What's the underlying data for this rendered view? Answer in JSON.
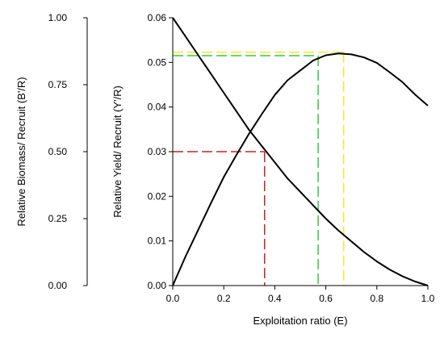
{
  "chart_data": {
    "type": "line",
    "xlabel": "Exploitation ratio (E)",
    "ylabel_left": "Relative Biomass/ Recruit (B'/R)",
    "ylabel_right": "Relative Yield/ Recruit (Y'/R)",
    "xlim": [
      0,
      1.0
    ],
    "ylim_biomass": [
      0,
      1.0
    ],
    "ylim_yield": [
      0,
      0.06
    ],
    "x_ticks": [
      "0.0",
      "0.2",
      "0.4",
      "0.6",
      "0.8",
      "1.0"
    ],
    "biomass_ticks": [
      "0.00",
      "0.25",
      "0.50",
      "0.75",
      "1.00"
    ],
    "yield_ticks": [
      "0.00",
      "0.01",
      "0.02",
      "0.03",
      "0.04",
      "0.05",
      "0.06"
    ],
    "grid": false,
    "series": [
      {
        "axis": "yield",
        "x": [
          0,
          0.05,
          0.1,
          0.15,
          0.2,
          0.25,
          0.3,
          0.35,
          0.4,
          0.45,
          0.5,
          0.55,
          0.6,
          0.65,
          0.7,
          0.75,
          0.8,
          0.85,
          0.9,
          0.95,
          1.0
        ],
        "values": [
          0,
          0.0065,
          0.0125,
          0.0185,
          0.0243,
          0.0293,
          0.0341,
          0.0385,
          0.0427,
          0.046,
          0.0482,
          0.0504,
          0.0516,
          0.052,
          0.0518,
          0.0511,
          0.0499,
          0.0478,
          0.0456,
          0.0428,
          0.0403
        ]
      },
      {
        "axis": "biomass",
        "x": [
          0,
          0.05,
          0.1,
          0.15,
          0.2,
          0.25,
          0.3,
          0.35,
          0.4,
          0.45,
          0.5,
          0.55,
          0.6,
          0.65,
          0.7,
          0.75,
          0.8,
          0.85,
          0.9,
          0.95,
          1.0
        ],
        "values": [
          1.0,
          0.93,
          0.86,
          0.79,
          0.72,
          0.65,
          0.58,
          0.52,
          0.46,
          0.4,
          0.35,
          0.3,
          0.25,
          0.205,
          0.165,
          0.125,
          0.09,
          0.06,
          0.035,
          0.015,
          0.0
        ]
      }
    ],
    "reference_lines": [
      {
        "color": "#cc2222",
        "x": 0.36,
        "yield": 0.03
      },
      {
        "color": "#33cc33",
        "x": 0.57,
        "yield": 0.0515
      },
      {
        "color": "#eeee22",
        "x": 0.67,
        "yield": 0.0523
      }
    ],
    "colors": {
      "curve": "#000000",
      "highlight_tick": "#cc2222"
    }
  }
}
